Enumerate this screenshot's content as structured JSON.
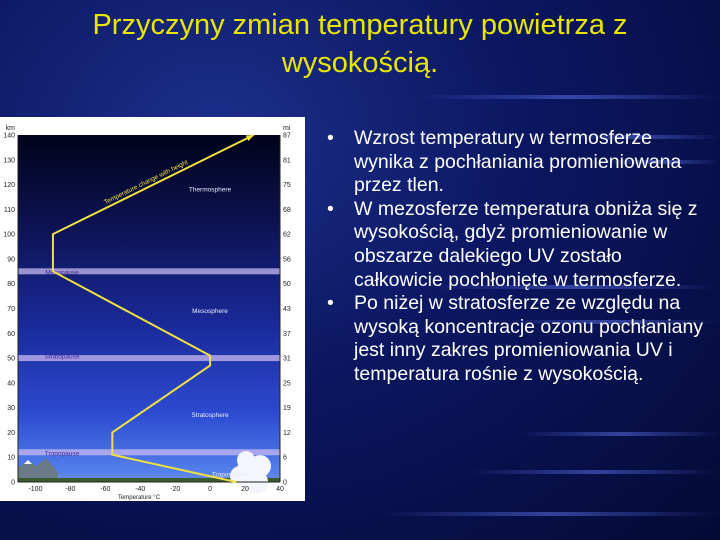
{
  "slide": {
    "title": "Przyczyny zmian temperatury powietrza z wysokością.",
    "bullets": [
      "Wzrost temperatury w termosferze wynika z pochłaniania promieniowana przez tlen.",
      "W mezosferze temperatura obniża się z wysokością, gdyż promieniowanie w obszarze dalekiego UV zostało całkowicie pochłonięte w termosferze.",
      "Po niżej w stratosferze ze względu na wysoką koncentracje ozonu pochłaniany jest inny zakres promieniowania UV i temperatura rośnie z wysokością."
    ],
    "colors": {
      "title": "#e8e600",
      "text": "#ffffff",
      "background": "#0b1660",
      "profile_line": "#f0e040"
    }
  },
  "chart_data": {
    "type": "line",
    "title": "",
    "xlabel": "Temperature °C",
    "ylabel_left": "km",
    "ylabel_right": "mi",
    "xlim": [
      -110,
      40
    ],
    "ylim": [
      0,
      140
    ],
    "x_ticks": [
      "-100",
      "-80",
      "-60",
      "-40",
      "-20",
      "0",
      "20",
      "40"
    ],
    "y_ticks_km": [
      "0",
      "10",
      "20",
      "30",
      "40",
      "50",
      "60",
      "70",
      "80",
      "90",
      "100",
      "110",
      "120",
      "130",
      "140"
    ],
    "y_ticks_mi": [
      "0",
      "6",
      "12",
      "19",
      "25",
      "31",
      "37",
      "43",
      "50",
      "56",
      "62",
      "68",
      "75",
      "81",
      "87"
    ],
    "series": [
      {
        "name": "",
        "x": [
          15,
          -56,
          -56,
          0,
          0,
          -90,
          -90,
          25
        ],
        "y": [
          0,
          11,
          20,
          47,
          51,
          85,
          100,
          140
        ]
      }
    ],
    "layers": [
      {
        "name": "Troposphere",
        "altitude_km": 3
      },
      {
        "name": "Tropopause",
        "altitude_km": 12
      },
      {
        "name": "Stratosphere",
        "altitude_km": 27
      },
      {
        "name": "Stratopause",
        "altitude_km": 51
      },
      {
        "name": "Mesosphere",
        "altitude_km": 69
      },
      {
        "name": "Mesopause",
        "altitude_km": 85
      },
      {
        "name": "Thermosphere",
        "altitude_km": 118
      }
    ],
    "boundaries_km": [
      12,
      50,
      85
    ],
    "annotations": [
      {
        "text": "Temperature change with height"
      }
    ]
  }
}
